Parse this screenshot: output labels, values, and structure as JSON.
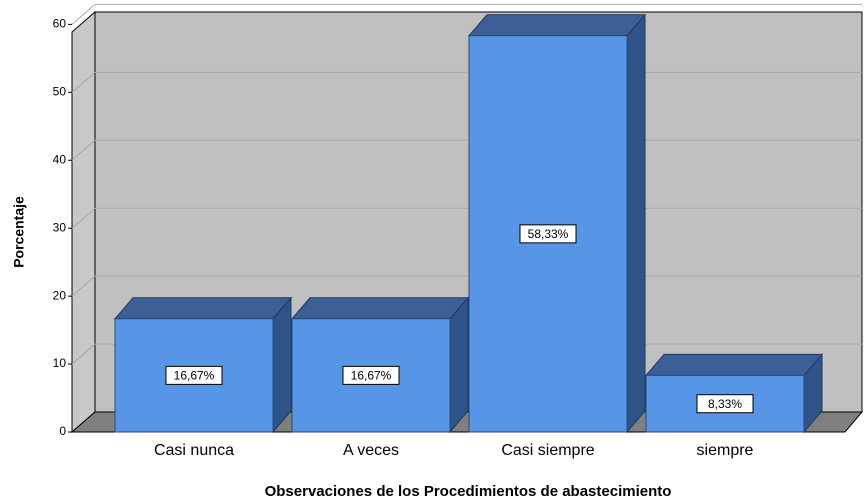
{
  "chart_data": {
    "type": "bar",
    "x_label": "Observaciones de los Procedimientos de abastecimiento",
    "y_label": "Porcentaje",
    "categories": [
      "Casi nunca",
      "A veces",
      "Casi siempre",
      "siempre"
    ],
    "values": [
      16.67,
      16.67,
      58.33,
      8.33
    ],
    "value_labels": [
      "16,67%",
      "16,67%",
      "58,33%",
      "8,33%"
    ],
    "color": "#5796e6",
    "ylim": [
      0,
      63
    ],
    "yticks": [
      0,
      10,
      20,
      30,
      40,
      50,
      60
    ],
    "grid": true
  }
}
